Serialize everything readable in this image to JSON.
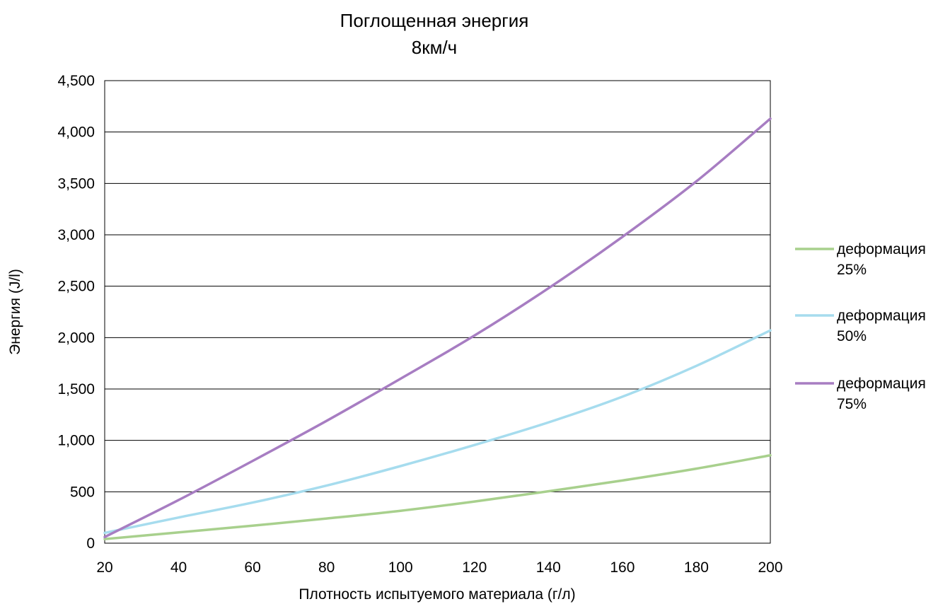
{
  "chart_data": {
    "type": "line",
    "title": "Поглощенная энергия",
    "subtitle": "8км/ч",
    "xlabel": "Плотность испытуемого материала (г/л)",
    "ylabel": "Энергия  (J/l)",
    "xlim": [
      20,
      200
    ],
    "ylim": [
      0,
      4500
    ],
    "x_ticks": [
      "20",
      "40",
      "60",
      "80",
      "100",
      "120",
      "140",
      "160",
      "180",
      "200"
    ],
    "y_ticks": [
      "0",
      "500",
      "1,000",
      "1,500",
      "2,000",
      "2,500",
      "3,000",
      "3,500",
      "4,000",
      "4,500"
    ],
    "grid": "horizontal",
    "legend_position": "right",
    "x": [
      20,
      40,
      60,
      80,
      100,
      120,
      140,
      160,
      180,
      200
    ],
    "series": [
      {
        "name_lines": [
          "деформация",
          "25%"
        ],
        "color": "#a8d08d",
        "values": [
          40,
          105,
          170,
          240,
          315,
          405,
          505,
          610,
          725,
          855
        ]
      },
      {
        "name_lines": [
          "деформация",
          "50%"
        ],
        "color": "#a6dcee",
        "values": [
          100,
          250,
          395,
          560,
          750,
          955,
          1175,
          1425,
          1725,
          2070
        ]
      },
      {
        "name_lines": [
          "деформация",
          "75%"
        ],
        "color": "#a77dc2",
        "values": [
          60,
          420,
          800,
          1190,
          1600,
          2020,
          2480,
          2980,
          3520,
          4130
        ]
      }
    ]
  }
}
